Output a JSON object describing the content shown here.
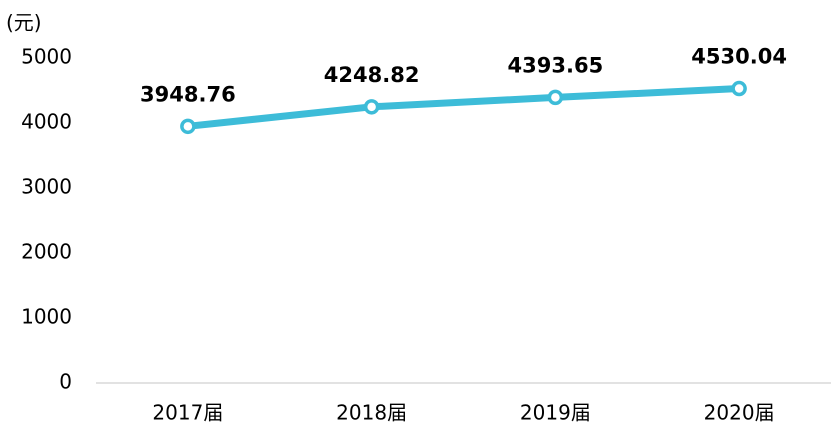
{
  "chart_data": {
    "type": "line",
    "y_label": "(元)",
    "categories": [
      "2017届",
      "2018届",
      "2019届",
      "2020届"
    ],
    "series": [
      {
        "name": null,
        "color": "#3dbcd8",
        "values": [
          3948.76,
          4248.82,
          4393.65,
          4530.04
        ]
      }
    ],
    "ylim": [
      0,
      5000
    ],
    "yticks": [
      0,
      1000,
      2000,
      3000,
      4000,
      5000
    ],
    "grid": false
  }
}
